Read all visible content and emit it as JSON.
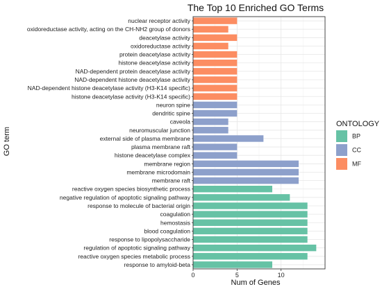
{
  "chart_data": {
    "type": "bar",
    "orientation": "horizontal",
    "title": "The Top 10 Enriched GO Terms",
    "xlabel": "Num of Genes",
    "ylabel": "GO term",
    "xlim": [
      0,
      15
    ],
    "xticks": [
      0,
      5,
      10
    ],
    "grid": true,
    "legend": {
      "title": "ONTOLOGY",
      "placement": "right",
      "entries": [
        {
          "name": "BP",
          "color": "#66c2a5"
        },
        {
          "name": "CC",
          "color": "#8da0cb"
        },
        {
          "name": "MF",
          "color": "#fc8d62"
        }
      ]
    },
    "bars": [
      {
        "label": "nuclear receptor activity",
        "value": 5,
        "ontology": "MF"
      },
      {
        "label": "oxidoreductase activity, acting on the CH-NH2 group of donors",
        "value": 4,
        "ontology": "MF"
      },
      {
        "label": "deacetylase activity",
        "value": 5,
        "ontology": "MF"
      },
      {
        "label": "oxidoreductase activity",
        "value": 4,
        "ontology": "MF"
      },
      {
        "label": "protein deacetylase activity",
        "value": 5,
        "ontology": "MF"
      },
      {
        "label": "histone deacetylase activity",
        "value": 5,
        "ontology": "MF"
      },
      {
        "label": "NAD-dependent protein deacetylase activity",
        "value": 5,
        "ontology": "MF"
      },
      {
        "label": "NAD-dependent histone deacetylase activity",
        "value": 5,
        "ontology": "MF"
      },
      {
        "label": "NAD-dependent histone deacetylase activity (H3-K14 specific)",
        "value": 5,
        "ontology": "MF"
      },
      {
        "label": "histone deacetylase activity (H3-K14 specific)",
        "value": 5,
        "ontology": "MF"
      },
      {
        "label": "neuron spine",
        "value": 5,
        "ontology": "CC"
      },
      {
        "label": "dendritic spine",
        "value": 5,
        "ontology": "CC"
      },
      {
        "label": "caveola",
        "value": 4,
        "ontology": "CC"
      },
      {
        "label": "neuromuscular junction",
        "value": 4,
        "ontology": "CC"
      },
      {
        "label": "external side of plasma membrane",
        "value": 8,
        "ontology": "CC"
      },
      {
        "label": "plasma membrane raft",
        "value": 5,
        "ontology": "CC"
      },
      {
        "label": "histone deacetylase complex",
        "value": 5,
        "ontology": "CC"
      },
      {
        "label": "membrane region",
        "value": 12,
        "ontology": "CC"
      },
      {
        "label": "membrane microdomain",
        "value": 12,
        "ontology": "CC"
      },
      {
        "label": "membrane raft",
        "value": 12,
        "ontology": "CC"
      },
      {
        "label": "reactive oxygen species biosynthetic process",
        "value": 9,
        "ontology": "BP"
      },
      {
        "label": "negative regulation of apoptotic signaling pathway",
        "value": 11,
        "ontology": "BP"
      },
      {
        "label": "response to molecule of bacterial origin",
        "value": 13,
        "ontology": "BP"
      },
      {
        "label": "coagulation",
        "value": 13,
        "ontology": "BP"
      },
      {
        "label": "hemostasis",
        "value": 13,
        "ontology": "BP"
      },
      {
        "label": "blood coagulation",
        "value": 13,
        "ontology": "BP"
      },
      {
        "label": "response to lipopolysaccharide",
        "value": 13,
        "ontology": "BP"
      },
      {
        "label": "regulation of apoptotic signaling pathway",
        "value": 14,
        "ontology": "BP"
      },
      {
        "label": "reactive oxygen species metabolic process",
        "value": 13,
        "ontology": "BP"
      },
      {
        "label": "response to amyloid-beta",
        "value": 9,
        "ontology": "BP"
      }
    ]
  }
}
